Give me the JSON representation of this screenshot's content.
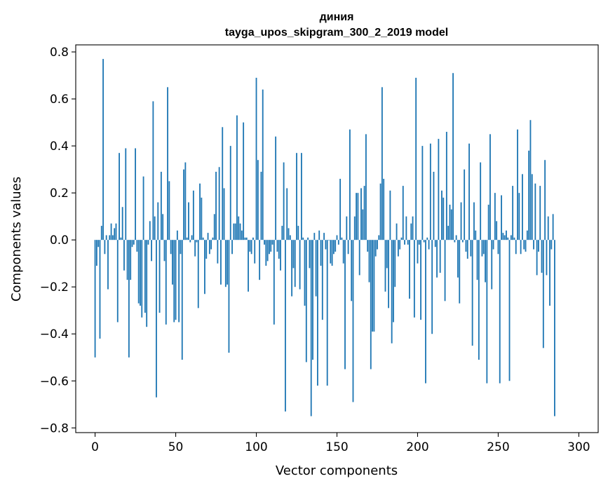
{
  "chart_data": {
    "type": "bar",
    "title": "диния",
    "subtitle": "tayga_upos_skipgram_300_2_2019 model",
    "xlabel": "Vector components",
    "ylabel": "Components values",
    "xlim": [
      -12,
      312
    ],
    "ylim": [
      -0.82,
      0.83
    ],
    "xticks": [
      0,
      50,
      100,
      150,
      200,
      250,
      300
    ],
    "xtick_labels": [
      "0",
      "50",
      "100",
      "150",
      "200",
      "250",
      "300"
    ],
    "yticks": [
      0.8,
      0.6,
      0.4,
      0.2,
      0.0,
      -0.2,
      -0.4,
      -0.6,
      -0.8
    ],
    "ytick_labels": [
      "0.8",
      "0.6",
      "0.4",
      "0.2",
      "0.0",
      "−0.2",
      "−0.4",
      "−0.6",
      "−0.8"
    ],
    "grid": false,
    "color": "#1f77b4",
    "values": [
      -0.5,
      -0.11,
      -0.03,
      -0.42,
      0.06,
      0.77,
      -0.06,
      0.02,
      -0.21,
      0.02,
      0.07,
      0.02,
      0.05,
      0.07,
      -0.35,
      0.37,
      0.01,
      0.14,
      -0.13,
      0.39,
      -0.17,
      -0.5,
      -0.17,
      -0.03,
      -0.02,
      0.39,
      -0.05,
      -0.27,
      -0.28,
      -0.33,
      0.27,
      -0.31,
      -0.37,
      -0.02,
      0.08,
      -0.09,
      0.59,
      0.1,
      -0.67,
      0.16,
      -0.31,
      0.29,
      0.11,
      -0.09,
      -0.36,
      0.65,
      0.25,
      -0.06,
      -0.19,
      -0.35,
      -0.34,
      0.04,
      -0.35,
      -0.06,
      -0.51,
      0.3,
      0.33,
      0.01,
      0.16,
      -0.01,
      0.02,
      0.21,
      -0.07,
      -0.01,
      -0.29,
      0.24,
      0.18,
      0.01,
      -0.23,
      -0.08,
      0.03,
      -0.06,
      -0.04,
      0.01,
      0.11,
      0.29,
      -0.1,
      0.31,
      -0.19,
      0.48,
      0.22,
      -0.2,
      -0.19,
      -0.48,
      0.4,
      -0.06,
      0.07,
      0.07,
      0.53,
      0.1,
      0.07,
      0.04,
      0.5,
      0.01,
      0.01,
      -0.22,
      -0.05,
      -0.06,
      0.01,
      -0.1,
      0.69,
      0.34,
      -0.17,
      0.29,
      0.64,
      -0.02,
      -0.11,
      -0.09,
      -0.06,
      -0.05,
      -0.02,
      -0.36,
      0.44,
      -0.05,
      -0.08,
      -0.13,
      0.06,
      0.33,
      -0.73,
      0.22,
      0.05,
      0.02,
      -0.24,
      -0.12,
      -0.2,
      0.37,
      0.06,
      -0.21,
      0.37,
      0.01,
      -0.28,
      -0.52,
      0.01,
      -0.12,
      -0.75,
      -0.51,
      0.03,
      -0.24,
      -0.62,
      0.04,
      -0.11,
      -0.34,
      0.03,
      -0.04,
      -0.62,
      0.0,
      -0.1,
      -0.11,
      -0.06,
      -0.05,
      0.02,
      -0.02,
      0.26,
      0.01,
      -0.1,
      -0.55,
      0.1,
      -0.06,
      0.47,
      -0.26,
      -0.69,
      0.1,
      0.2,
      0.2,
      -0.15,
      0.22,
      0.13,
      0.23,
      0.45,
      -0.05,
      -0.18,
      -0.55,
      -0.39,
      -0.39,
      -0.07,
      -0.04,
      0.02,
      0.24,
      0.65,
      0.26,
      -0.22,
      -0.12,
      -0.29,
      0.21,
      -0.44,
      -0.35,
      -0.2,
      0.07,
      -0.07,
      -0.04,
      0.01,
      0.23,
      -0.02,
      0.1,
      -0.02,
      -0.25,
      0.07,
      0.1,
      -0.33,
      0.69,
      -0.1,
      -0.02,
      -0.34,
      0.4,
      -0.01,
      -0.61,
      0.01,
      -0.04,
      0.41,
      -0.4,
      0.29,
      -0.03,
      -0.16,
      0.43,
      -0.14,
      0.21,
      0.18,
      -0.26,
      0.46,
      0.06,
      0.15,
      0.13,
      0.71,
      -0.01,
      0.02,
      -0.16,
      -0.27,
      0.16,
      -0.01,
      0.3,
      -0.05,
      -0.08,
      0.41,
      -0.07,
      -0.45,
      0.16,
      0.04,
      -0.17,
      -0.51,
      0.33,
      -0.07,
      -0.06,
      -0.18,
      -0.61,
      0.15,
      0.45,
      -0.21,
      -0.04,
      0.2,
      0.08,
      -0.06,
      -0.61,
      0.19,
      0.03,
      0.02,
      0.04,
      0.01,
      -0.6,
      0.02,
      0.23,
      0.01,
      -0.06,
      0.47,
      0.2,
      -0.06,
      0.28,
      -0.04,
      -0.05,
      0.04,
      0.38,
      0.51,
      0.28,
      -0.04,
      0.24,
      -0.15,
      -0.05,
      0.23,
      -0.14,
      -0.46,
      0.34,
      -0.15,
      0.1,
      -0.28,
      -0.04,
      0.11,
      -0.75
    ]
  }
}
